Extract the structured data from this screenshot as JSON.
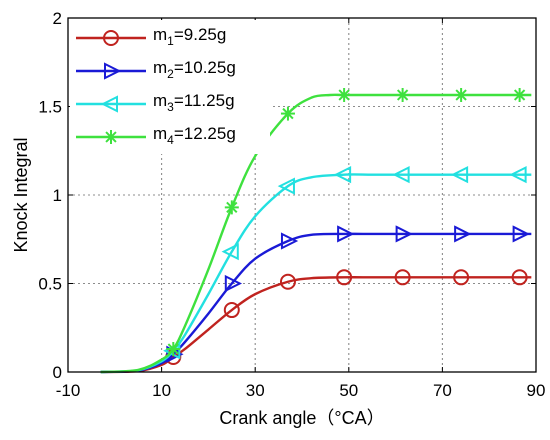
{
  "chart_data": {
    "type": "line",
    "xlabel": "Crank angle（°CA）",
    "ylabel": "Knock Integral",
    "xlim": [
      -10,
      90
    ],
    "ylim": [
      0,
      2
    ],
    "xticks": [
      -10,
      10,
      30,
      50,
      70,
      90
    ],
    "yticks": [
      0,
      0.5,
      1,
      1.5,
      2
    ],
    "ytick_labels": [
      "0",
      "0.5",
      "1",
      "1.5",
      "2"
    ],
    "grid": true,
    "legend_position": "top-left",
    "series": [
      {
        "name": "m1=9.25g",
        "legend_main": "m",
        "legend_sub": "1",
        "legend_rest": "=9.25g",
        "color": "#c0231f",
        "marker": "circle",
        "x": [
          -3,
          5,
          10,
          12.5,
          15,
          20,
          25,
          30,
          37,
          42,
          49,
          55,
          61.5,
          70,
          74,
          80,
          86.5,
          89
        ],
        "y": [
          0,
          0.005,
          0.04,
          0.085,
          0.13,
          0.24,
          0.35,
          0.44,
          0.51,
          0.53,
          0.535,
          0.535,
          0.535,
          0.535,
          0.535,
          0.535,
          0.535,
          0.535
        ],
        "marker_x": [
          12.5,
          25,
          37,
          49,
          61.5,
          74,
          86.5
        ]
      },
      {
        "name": "m2=10.25g",
        "legend_main": "m",
        "legend_sub": "2",
        "legend_rest": "=10.25g",
        "color": "#1a1ad6",
        "marker": "triangle-right",
        "x": [
          -3,
          5,
          10,
          12.5,
          15,
          20,
          25,
          30,
          37,
          42,
          49,
          55,
          61.5,
          70,
          74,
          80,
          86.5,
          89
        ],
        "y": [
          0,
          0.008,
          0.05,
          0.1,
          0.17,
          0.33,
          0.5,
          0.64,
          0.74,
          0.775,
          0.78,
          0.78,
          0.78,
          0.78,
          0.78,
          0.78,
          0.78,
          0.78
        ],
        "marker_x": [
          12.5,
          25,
          37,
          49,
          61.5,
          74,
          86.5
        ]
      },
      {
        "name": "m3=11.25g",
        "legend_main": "m",
        "legend_sub": "3",
        "legend_rest": "=11.25g",
        "color": "#22e0e0",
        "marker": "triangle-left",
        "x": [
          -3,
          5,
          10,
          12.5,
          15,
          20,
          25,
          30,
          37,
          42,
          49,
          55,
          61.5,
          70,
          74,
          80,
          86.5,
          89
        ],
        "y": [
          0,
          0.01,
          0.06,
          0.12,
          0.21,
          0.44,
          0.68,
          0.88,
          1.05,
          1.1,
          1.115,
          1.115,
          1.115,
          1.115,
          1.115,
          1.115,
          1.115,
          1.115
        ],
        "marker_x": [
          12.5,
          25,
          37,
          49,
          61.5,
          74,
          86.5
        ]
      },
      {
        "name": "m4=12.25g",
        "legend_main": "m",
        "legend_sub": "4",
        "legend_rest": "=12.25g",
        "color": "#3ee13e",
        "marker": "star",
        "x": [
          -3,
          5,
          10,
          12.5,
          15,
          20,
          25,
          30,
          37,
          42,
          46,
          49,
          55,
          61.5,
          70,
          74,
          80,
          86.5,
          89
        ],
        "y": [
          0,
          0.012,
          0.07,
          0.13,
          0.26,
          0.58,
          0.93,
          1.22,
          1.46,
          1.55,
          1.565,
          1.565,
          1.565,
          1.565,
          1.565,
          1.565,
          1.565,
          1.565,
          1.565
        ],
        "marker_x": [
          12.5,
          25,
          37,
          49,
          61.5,
          74,
          86.5
        ]
      }
    ]
  }
}
